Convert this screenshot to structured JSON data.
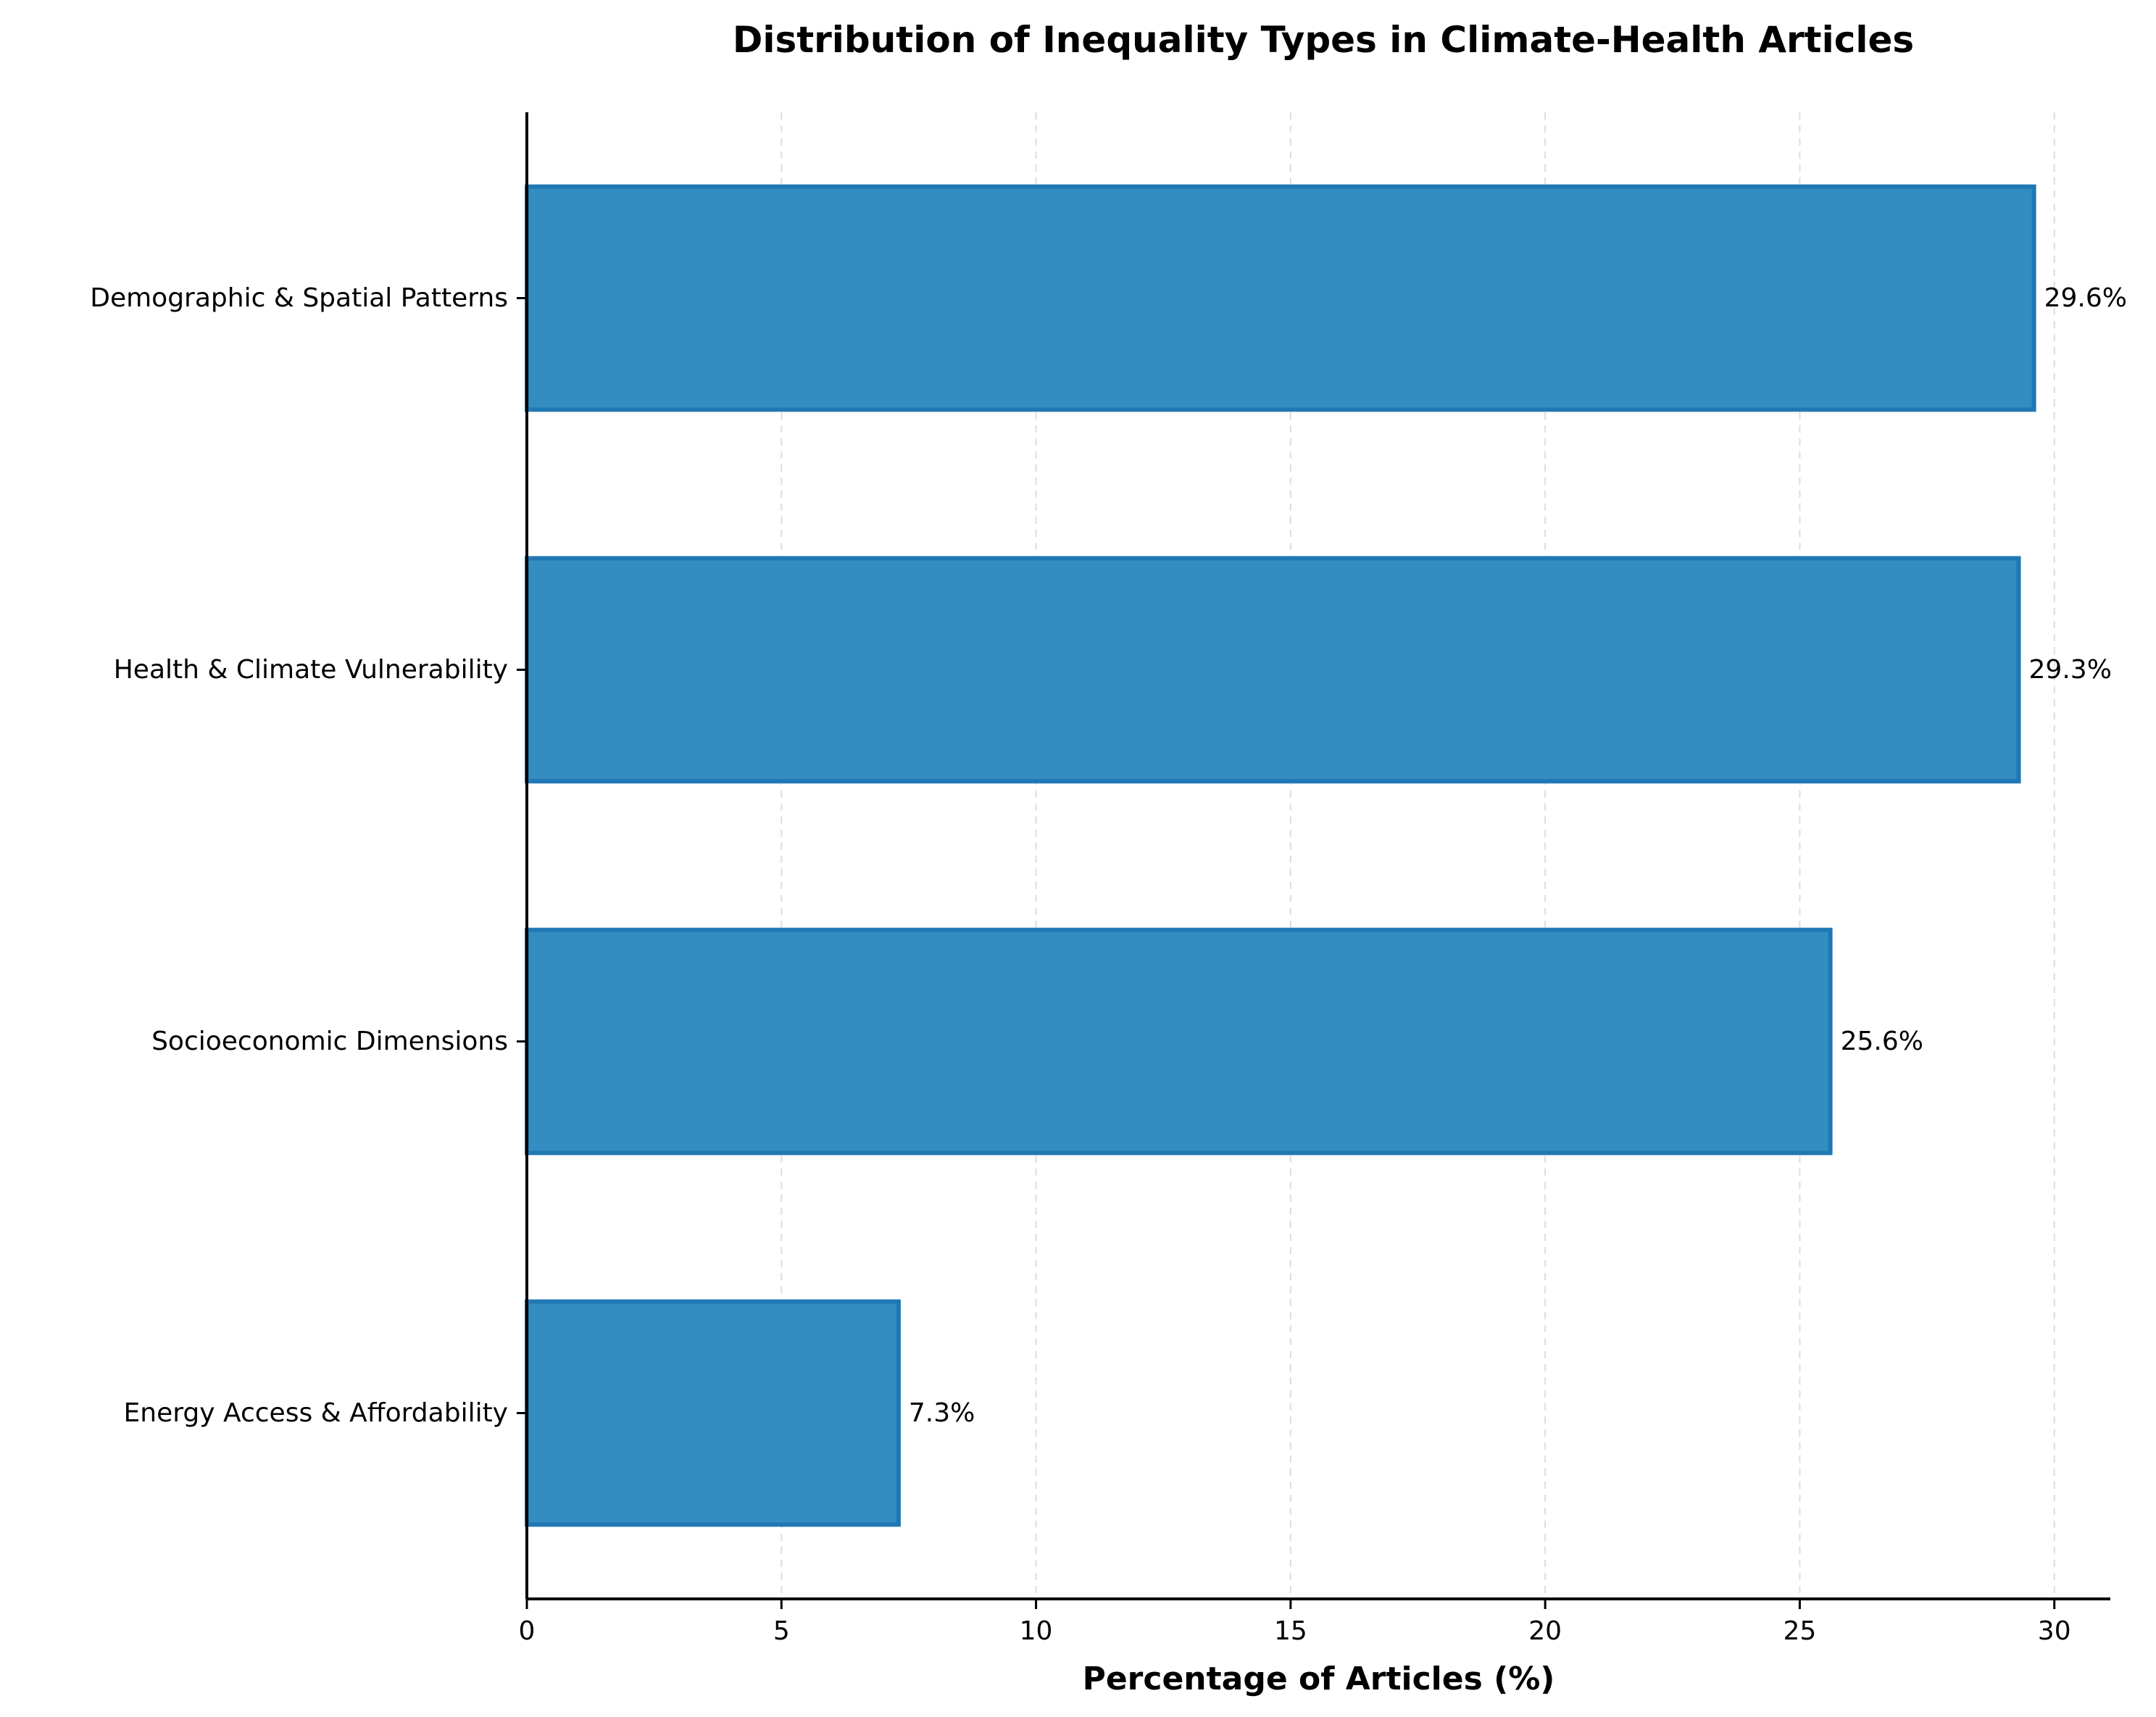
{
  "chart_data": {
    "type": "bar",
    "orientation": "horizontal",
    "title": "Distribution of Inequality Types in Climate-Health Articles",
    "xlabel": "Percentage of Articles (%)",
    "ylabel": "",
    "categories": [
      "Demographic & Spatial Patterns",
      "Health & Climate Vulnerability",
      "Socioeconomic Dimensions",
      "Energy Access & Affordability"
    ],
    "values": [
      29.6,
      29.3,
      25.6,
      7.3
    ],
    "value_labels": [
      "29.6%",
      "29.3%",
      "25.6%",
      "7.3%"
    ],
    "xlim": [
      0,
      31.1
    ],
    "xticks": [
      0,
      5,
      10,
      15,
      20,
      25,
      30
    ],
    "xtick_labels": [
      "0",
      "5",
      "10",
      "15",
      "20",
      "25",
      "30"
    ],
    "grid": "x-axis, dashed",
    "bar_color": "#348dc1",
    "bar_edge_color": "#1f77b4",
    "grid_color": "#dddddd"
  }
}
